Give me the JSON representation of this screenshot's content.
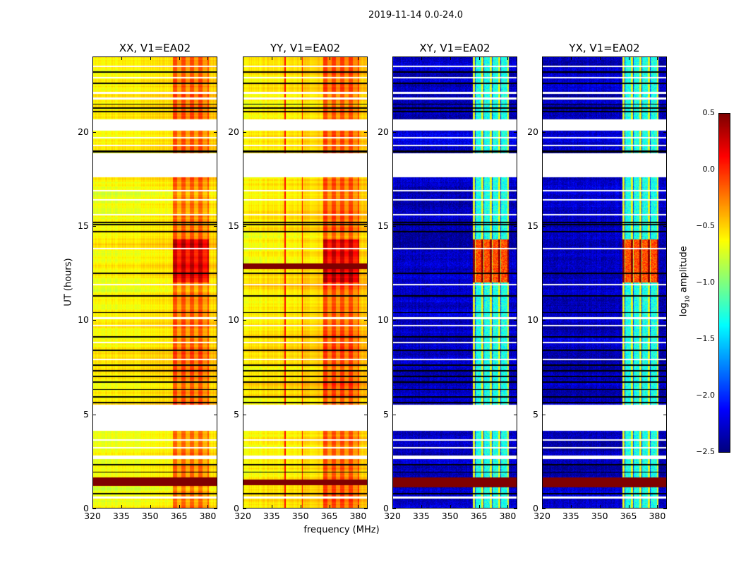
{
  "chart_data": {
    "type": "heatmap",
    "title": "2019-11-14 0.0-24.0",
    "xlabel": "frequency (MHz)",
    "ylabel": "UT (hours)",
    "xlim": [
      320,
      385
    ],
    "ylim": [
      0,
      24
    ],
    "xticks": [
      320,
      335,
      350,
      365,
      380
    ],
    "yticks": [
      0,
      5,
      10,
      15,
      20
    ],
    "panels": [
      {
        "title": "XX, V1=EA02",
        "kind": "parallel",
        "base": -0.65,
        "band_level": -0.25,
        "hot_rows": [
          [
            1.15,
            1.6
          ]
        ],
        "red_lines_mhz": []
      },
      {
        "title": "YY, V1=EA02",
        "kind": "parallel",
        "base": -0.6,
        "band_level": -0.2,
        "hot_rows": [
          [
            1.2,
            1.5
          ],
          [
            12.7,
            13.0
          ]
        ],
        "red_lines_mhz": [
          342,
          351
        ]
      },
      {
        "title": "XY, V1=EA02",
        "kind": "cross",
        "base": -2.3,
        "band_level": -1.0,
        "hot_rows": [
          [
            1.1,
            1.6
          ]
        ],
        "red_lines_mhz": []
      },
      {
        "title": "YX, V1=EA02",
        "kind": "cross",
        "base": -2.3,
        "band_level": -1.0,
        "hot_rows": [
          [
            1.1,
            1.6
          ]
        ],
        "red_lines_mhz": []
      }
    ],
    "band_mhz": [
      362,
      381
    ],
    "bright_hours": [
      [
        12.0,
        14.3
      ]
    ],
    "gaps_hours": [
      [
        0.5,
        0.6
      ],
      [
        2.6,
        2.8
      ],
      [
        4.1,
        5.5
      ],
      [
        17.6,
        18.9
      ],
      [
        20.1,
        20.7
      ]
    ],
    "flagged_hours": [
      0.75,
      1.9,
      2.3,
      5.6,
      5.9,
      6.3,
      6.7,
      7.0,
      7.3,
      7.6,
      8.4,
      9.1,
      10.4,
      11.3,
      12.5,
      14.7,
      15.1,
      15.2,
      18.95,
      19.0,
      21.1,
      21.3,
      21.5,
      22.6,
      23.2
    ],
    "white_line_hours": [
      3.2,
      3.6,
      7.9,
      8.8,
      9.7,
      10.1,
      11.9,
      13.8,
      15.6,
      16.4,
      16.9,
      19.3,
      19.7,
      21.8,
      22.1,
      22.9,
      23.5
    ],
    "colorbar": {
      "label_prefix": "log",
      "label_sub": "10",
      "label_suffix": " amplitude",
      "range": [
        -2.5,
        0.5
      ],
      "ticks": [
        "0.5",
        "0.0",
        "−0.5",
        "−1.0",
        "−1.5",
        "−2.0",
        "−2.5"
      ],
      "colormap": "jet"
    }
  }
}
